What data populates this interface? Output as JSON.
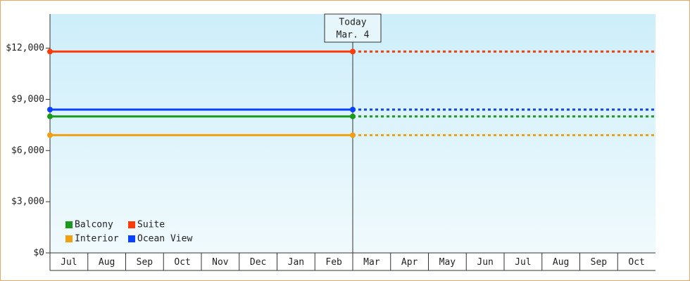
{
  "chart_data": {
    "type": "line",
    "categories": [
      "Jul",
      "Aug",
      "Sep",
      "Oct",
      "Nov",
      "Dec",
      "Jan",
      "Feb",
      "Mar",
      "Apr",
      "May",
      "Jun",
      "Jul",
      "Aug",
      "Sep",
      "Oct"
    ],
    "series": [
      {
        "name": "Balcony",
        "color": "#1a9a1a",
        "values": [
          8000,
          8000,
          8000,
          8000,
          8000,
          8000,
          8000,
          8000,
          8000,
          null,
          null,
          null,
          null,
          null,
          null,
          null
        ]
      },
      {
        "name": "Suite",
        "color": "#ff3a0a",
        "values": [
          11800,
          11800,
          11800,
          11800,
          11800,
          11800,
          11800,
          11800,
          11800,
          null,
          null,
          null,
          null,
          null,
          null,
          null
        ]
      },
      {
        "name": "Interior",
        "color": "#f0a010",
        "values": [
          6900,
          6900,
          6900,
          6900,
          6900,
          6900,
          6900,
          6900,
          6900,
          null,
          null,
          null,
          null,
          null,
          null,
          null
        ]
      },
      {
        "name": "Ocean View",
        "color": "#0a40ff",
        "values": [
          8400,
          8400,
          8400,
          8400,
          8400,
          8400,
          8400,
          8400,
          8400,
          null,
          null,
          null,
          null,
          null,
          null,
          null
        ]
      }
    ],
    "annotation": [
      "Today",
      "Mar. 4"
    ],
    "ylim": [
      0,
      14000
    ],
    "yticks": [
      {
        "value": 0,
        "label": "$0"
      },
      {
        "value": 3000,
        "label": "$3,000"
      },
      {
        "value": 6000,
        "label": "$6,000"
      },
      {
        "value": 9000,
        "label": "$9,000"
      },
      {
        "value": 12000,
        "label": "$12,000"
      }
    ],
    "legend": "lower-left"
  }
}
